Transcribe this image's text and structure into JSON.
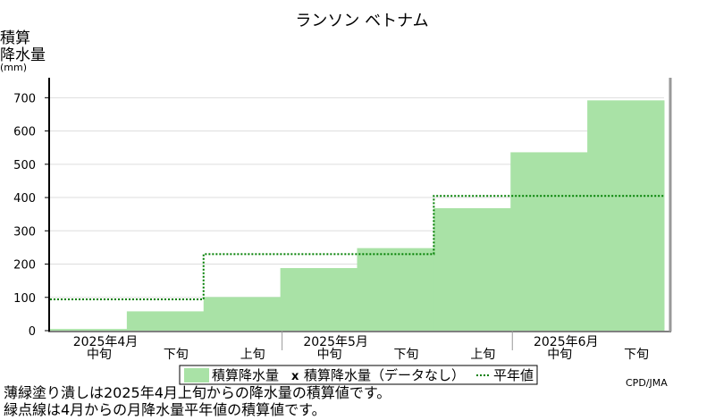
{
  "colors": {
    "bar_fill": "#a9e2a6",
    "normal_line": "#007f00",
    "axis": "#000000",
    "frame_right": "#999999",
    "grid": "#dddddd"
  },
  "chart_data": {
    "type": "area",
    "title": "ランソン ベトナム",
    "ylabel_lines": [
      "積算",
      "降水量",
      "(mm)"
    ],
    "ylim": [
      0,
      760
    ],
    "yticks": [
      0,
      100,
      200,
      300,
      400,
      500,
      600,
      700
    ],
    "grid": true,
    "periods": [
      "2025年4月中旬",
      "2025年4月下旬",
      "2025年5月上旬",
      "2025年5月中旬",
      "2025年5月下旬",
      "2025年6月上旬",
      "2025年6月中旬",
      "2025年6月下旬"
    ],
    "x_axis": {
      "months": [
        "2025年4月",
        "2025年5月",
        "2025年6月"
      ],
      "dekads": [
        "中旬",
        "下旬",
        "上旬",
        "中旬",
        "下旬",
        "上旬",
        "中旬",
        "下旬"
      ]
    },
    "series": [
      {
        "name": "積算降水量",
        "style": "filled-steps",
        "values": [
          5,
          58,
          101,
          188,
          248,
          368,
          536,
          692
        ]
      },
      {
        "name": "積算降水量（データなし）",
        "style": "marker-x",
        "values": []
      },
      {
        "name": "平年値",
        "style": "dotted-steps",
        "values": [
          94,
          94,
          230,
          230,
          230,
          405,
          405,
          405
        ]
      }
    ],
    "legend_position": "bottom-center",
    "credit": "CPD/JMA"
  },
  "notes": [
    "薄緑塗り潰しは2025年4月上旬からの降水量の積算値です。",
    "緑点線は4月からの月降水量平年値の積算値です。"
  ]
}
